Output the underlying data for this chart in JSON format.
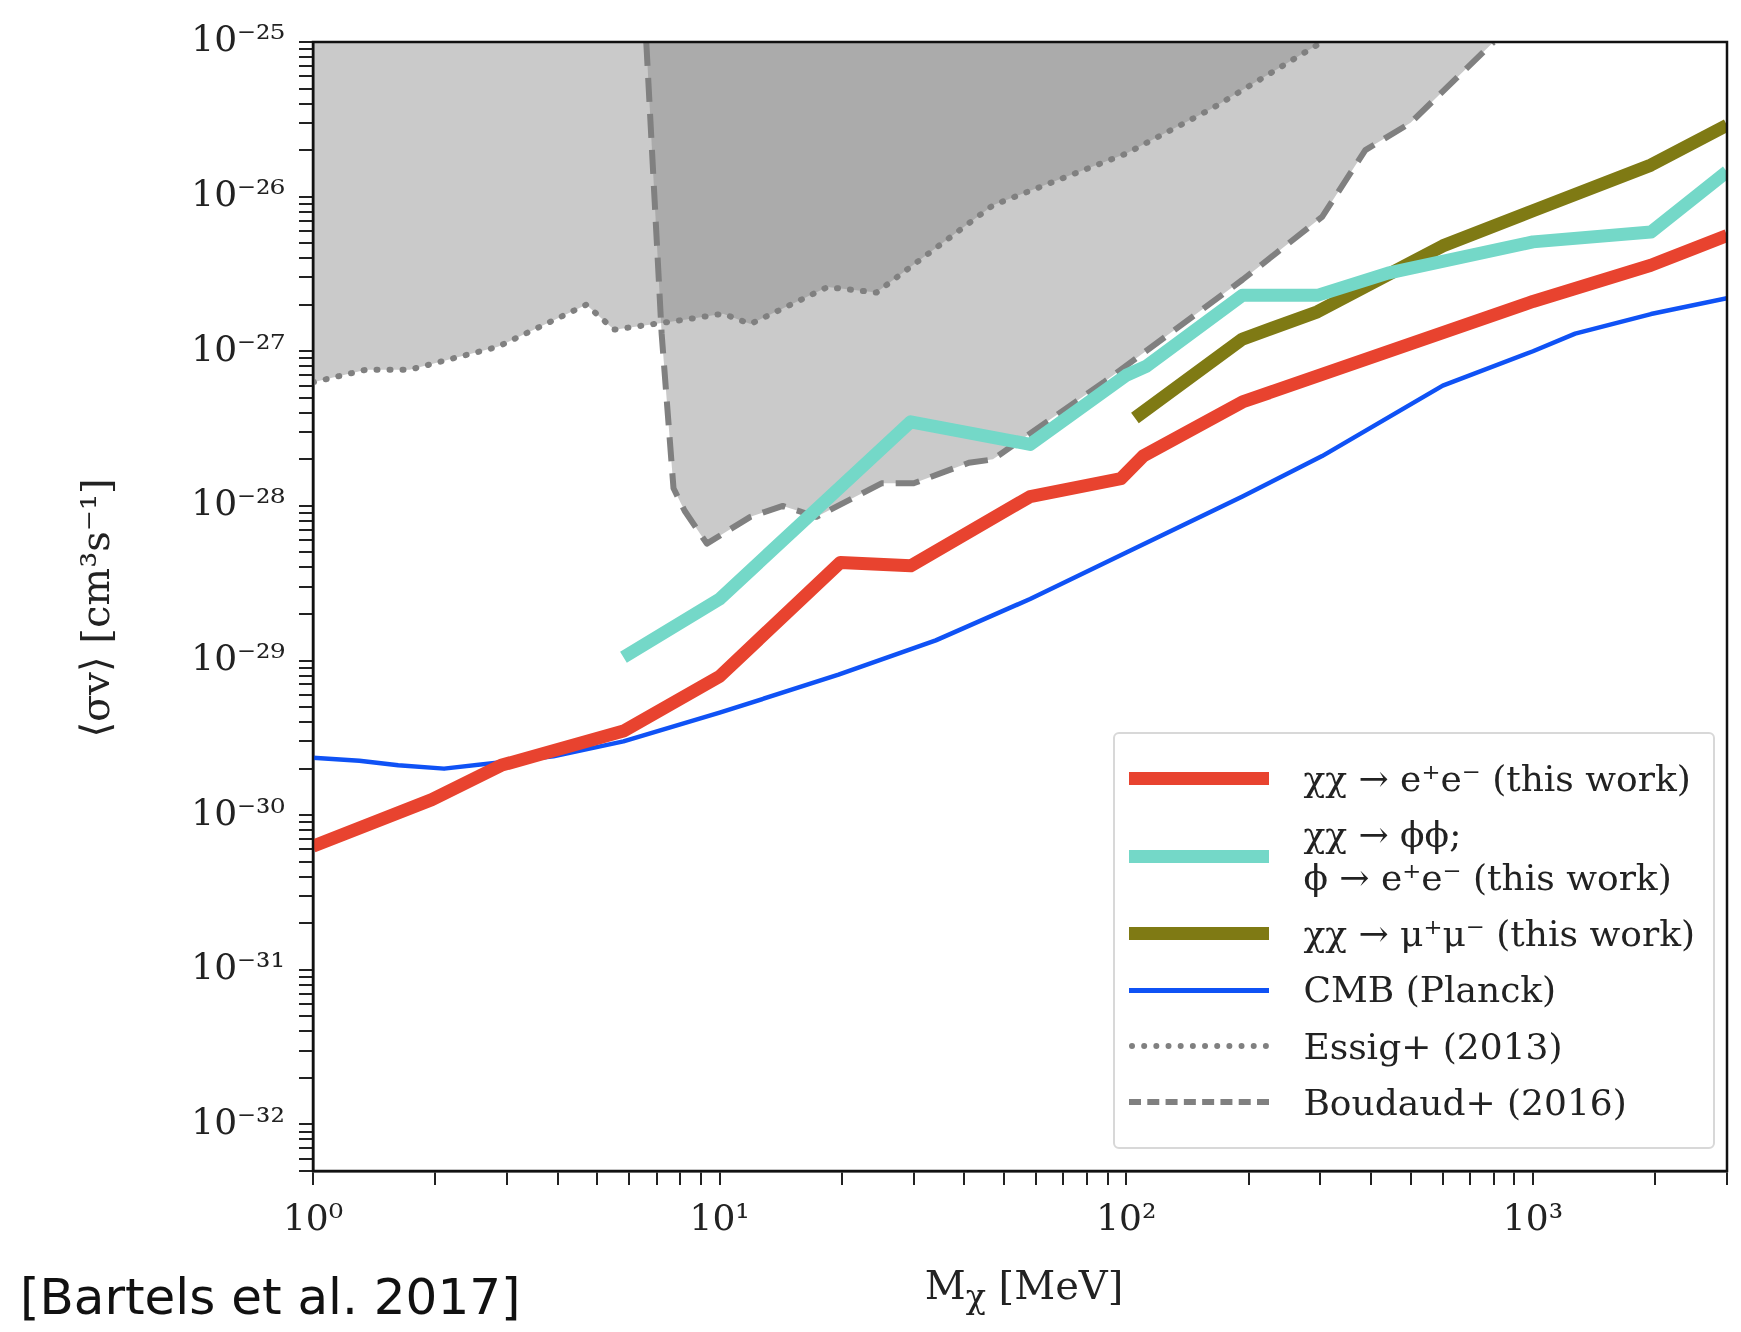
{
  "chart_data": {
    "type": "line",
    "xlabel": "M$_{χ}$ [MeV]",
    "ylabel": "⟨σv⟩ [cm³s⁻¹]",
    "log": "xy",
    "grid": false,
    "marker": "none",
    "legend": "bottom right",
    "annotations": [
      "[Bartels et al. 2017]"
    ],
    "xlim": [
      1,
      3000
    ],
    "ylim": [
      5e-33,
      1e-25
    ],
    "xticks": [
      {
        "value": 1,
        "label": "10⁰"
      },
      {
        "value": 2,
        "label": null
      },
      {
        "value": 3,
        "label": null
      },
      {
        "value": 4,
        "label": null
      },
      {
        "value": 5,
        "label": null
      },
      {
        "value": 6,
        "label": null
      },
      {
        "value": 7,
        "label": null
      },
      {
        "value": 8,
        "label": null
      },
      {
        "value": 9,
        "label": null
      },
      {
        "value": 10,
        "label": "10¹"
      },
      {
        "value": 20,
        "label": null
      },
      {
        "value": 30,
        "label": null
      },
      {
        "value": 40,
        "label": null
      },
      {
        "value": 50,
        "label": null
      },
      {
        "value": 60,
        "label": null
      },
      {
        "value": 70,
        "label": null
      },
      {
        "value": 80,
        "label": null
      },
      {
        "value": 90,
        "label": null
      },
      {
        "value": 100,
        "label": "10²"
      },
      {
        "value": 200,
        "label": null
      },
      {
        "value": 300,
        "label": null
      },
      {
        "value": 400,
        "label": null
      },
      {
        "value": 500,
        "label": null
      },
      {
        "value": 600,
        "label": null
      },
      {
        "value": 700,
        "label": null
      },
      {
        "value": 800,
        "label": null
      },
      {
        "value": 900,
        "label": null
      },
      {
        "value": 1000,
        "label": "10³"
      },
      {
        "value": 2000,
        "label": null
      },
      {
        "value": 3000,
        "label": null
      }
    ],
    "yticks": [
      {
        "value": 5e-33,
        "label": null
      },
      {
        "value": 6e-33,
        "label": null
      },
      {
        "value": 7e-33,
        "label": null
      },
      {
        "value": 8e-33,
        "label": null
      },
      {
        "value": 9e-33,
        "label": null
      },
      {
        "value": 1e-32,
        "label": "10⁻³²"
      },
      {
        "value": 2e-32,
        "label": null
      },
      {
        "value": 3e-32,
        "label": null
      },
      {
        "value": 4e-32,
        "label": null
      },
      {
        "value": 5e-32,
        "label": null
      },
      {
        "value": 6e-32,
        "label": null
      },
      {
        "value": 7e-32,
        "label": null
      },
      {
        "value": 8e-32,
        "label": null
      },
      {
        "value": 9e-32,
        "label": null
      },
      {
        "value": 1e-31,
        "label": "10⁻³¹"
      },
      {
        "value": 2e-31,
        "label": null
      },
      {
        "value": 3e-31,
        "label": null
      },
      {
        "value": 4e-31,
        "label": null
      },
      {
        "value": 5e-31,
        "label": null
      },
      {
        "value": 6e-31,
        "label": null
      },
      {
        "value": 7e-31,
        "label": null
      },
      {
        "value": 8e-31,
        "label": null
      },
      {
        "value": 9e-31,
        "label": null
      },
      {
        "value": 1e-30,
        "label": "10⁻³⁰"
      },
      {
        "value": 2e-30,
        "label": null
      },
      {
        "value": 3e-30,
        "label": null
      },
      {
        "value": 4e-30,
        "label": null
      },
      {
        "value": 5e-30,
        "label": null
      },
      {
        "value": 6e-30,
        "label": null
      },
      {
        "value": 7e-30,
        "label": null
      },
      {
        "value": 8e-30,
        "label": null
      },
      {
        "value": 9e-30,
        "label": null
      },
      {
        "value": 1e-29,
        "label": "10⁻²⁹"
      },
      {
        "value": 2e-29,
        "label": null
      },
      {
        "value": 3e-29,
        "label": null
      },
      {
        "value": 4e-29,
        "label": null
      },
      {
        "value": 5e-29,
        "label": null
      },
      {
        "value": 6e-29,
        "label": null
      },
      {
        "value": 7e-29,
        "label": null
      },
      {
        "value": 8e-29,
        "label": null
      },
      {
        "value": 9e-29,
        "label": null
      },
      {
        "value": 1e-28,
        "label": "10⁻²⁸"
      },
      {
        "value": 2e-28,
        "label": null
      },
      {
        "value": 3e-28,
        "label": null
      },
      {
        "value": 4e-28,
        "label": null
      },
      {
        "value": 5e-28,
        "label": null
      },
      {
        "value": 6e-28,
        "label": null
      },
      {
        "value": 7e-28,
        "label": null
      },
      {
        "value": 8e-28,
        "label": null
      },
      {
        "value": 9e-28,
        "label": null
      },
      {
        "value": 1e-27,
        "label": "10⁻²⁷"
      },
      {
        "value": 2e-27,
        "label": null
      },
      {
        "value": 3e-27,
        "label": null
      },
      {
        "value": 4e-27,
        "label": null
      },
      {
        "value": 5e-27,
        "label": null
      },
      {
        "value": 6e-27,
        "label": null
      },
      {
        "value": 7e-27,
        "label": null
      },
      {
        "value": 8e-27,
        "label": null
      },
      {
        "value": 9e-27,
        "label": null
      },
      {
        "value": 1e-26,
        "label": "10⁻²⁶"
      },
      {
        "value": 2e-26,
        "label": null
      },
      {
        "value": 3e-26,
        "label": null
      },
      {
        "value": 4e-26,
        "label": null
      },
      {
        "value": 5e-26,
        "label": null
      },
      {
        "value": 6e-26,
        "label": null
      },
      {
        "value": 7e-26,
        "label": null
      },
      {
        "value": 8e-26,
        "label": null
      },
      {
        "value": 9e-26,
        "label": null
      },
      {
        "value": 1e-25,
        "label": "10⁻²⁵"
      }
    ],
    "series": [
      {
        "name": "χχ → e⁺e⁻ (this work)",
        "color": "#e8432f",
        "line_style": "solid",
        "x": [
          1,
          1.96,
          2.9,
          5.8,
          10,
          19.8,
          29.5,
          58,
          97,
          110,
          193,
          1000,
          1950,
          3000
        ],
        "values": [
          6.3e-31,
          1.26e-30,
          2.1e-30,
          3.5e-30,
          7.9e-30,
          4.3e-29,
          4.1e-29,
          1.15e-28,
          1.5e-28,
          2.1e-28,
          4.7e-28,
          2.1e-27,
          3.6e-27,
          5.6e-27
        ]
      },
      {
        "name": "χχ → ϕϕ;\nϕ → e⁺e⁻ (this work)",
        "color": "#74d8c8",
        "line_style": "solid",
        "x": [
          5.8,
          10,
          29.5,
          58,
          100,
          112,
          193,
          295,
          440,
          1000,
          1950,
          3000
        ],
        "values": [
          1.05e-29,
          2.5e-29,
          3.5e-28,
          2.5e-28,
          7e-28,
          8e-28,
          2.3e-27,
          2.3e-27,
          3.2e-27,
          5.1e-27,
          5.9e-27,
          1.45e-26
        ]
      },
      {
        "name": "χχ → μ⁺μ⁻ (this work)",
        "color": "#7f7a14",
        "line_style": "solid",
        "x": [
          105,
          193,
          295,
          600,
          1000,
          1950,
          3000
        ],
        "values": [
          3.7e-28,
          1.2e-27,
          1.8e-27,
          4.8e-27,
          8.1e-27,
          1.6e-26,
          2.9e-26
        ]
      },
      {
        "name": "CMB (Planck)",
        "color": "#0f52f5",
        "line_style": "solid",
        "x": [
          1,
          1.3,
          1.62,
          2.1,
          3.9,
          5.8,
          10,
          19.6,
          34,
          58,
          100,
          193,
          303,
          600,
          1000,
          1270,
          1950,
          3000
        ],
        "values": [
          2.35e-30,
          2.25e-30,
          2.1e-30,
          2e-30,
          2.4e-30,
          3e-30,
          4.6e-30,
          8.1e-30,
          1.35e-29,
          2.5e-29,
          5e-29,
          1.15e-28,
          2.1e-28,
          6e-28,
          1e-27,
          1.3e-27,
          1.74e-27,
          2.2e-27
        ]
      },
      {
        "name": "Essig+ (2013)",
        "type": "area",
        "color": "#808080",
        "line_style": "dotted",
        "x": [
          1,
          1,
          1.35,
          1.73,
          2.85,
          4.7,
          5.5,
          8.2,
          10.2,
          11.9,
          18.4,
          24.3,
          47,
          100,
          162,
          303
        ],
        "values": [
          1e-25,
          6.3e-28,
          7.6e-28,
          7.6e-28,
          1.07e-27,
          2e-27,
          1.38e-27,
          1.6e-27,
          1.75e-27,
          1.5e-27,
          2.6e-27,
          2.4e-27,
          8.8e-27,
          1.9e-26,
          3.7e-26,
          1e-25
        ]
      },
      {
        "name": "Boudaud+ (2016)",
        "type": "area",
        "color": "#808080",
        "line_style": "dashed",
        "x": [
          6.6,
          7.2,
          7.7,
          8.2,
          9.3,
          11.9,
          14.3,
          17.3,
          25,
          30,
          41,
          47,
          88,
          193,
          303,
          387,
          500,
          800
        ],
        "values": [
          1e-25,
          1.3e-27,
          1.3e-28,
          9.3e-29,
          5.7e-29,
          8.5e-29,
          1e-28,
          8.5e-29,
          1.4e-28,
          1.4e-28,
          1.9e-28,
          2e-28,
          6.3e-28,
          2.9e-27,
          7.4e-27,
          2e-26,
          3e-26,
          1e-25
        ]
      }
    ]
  }
}
